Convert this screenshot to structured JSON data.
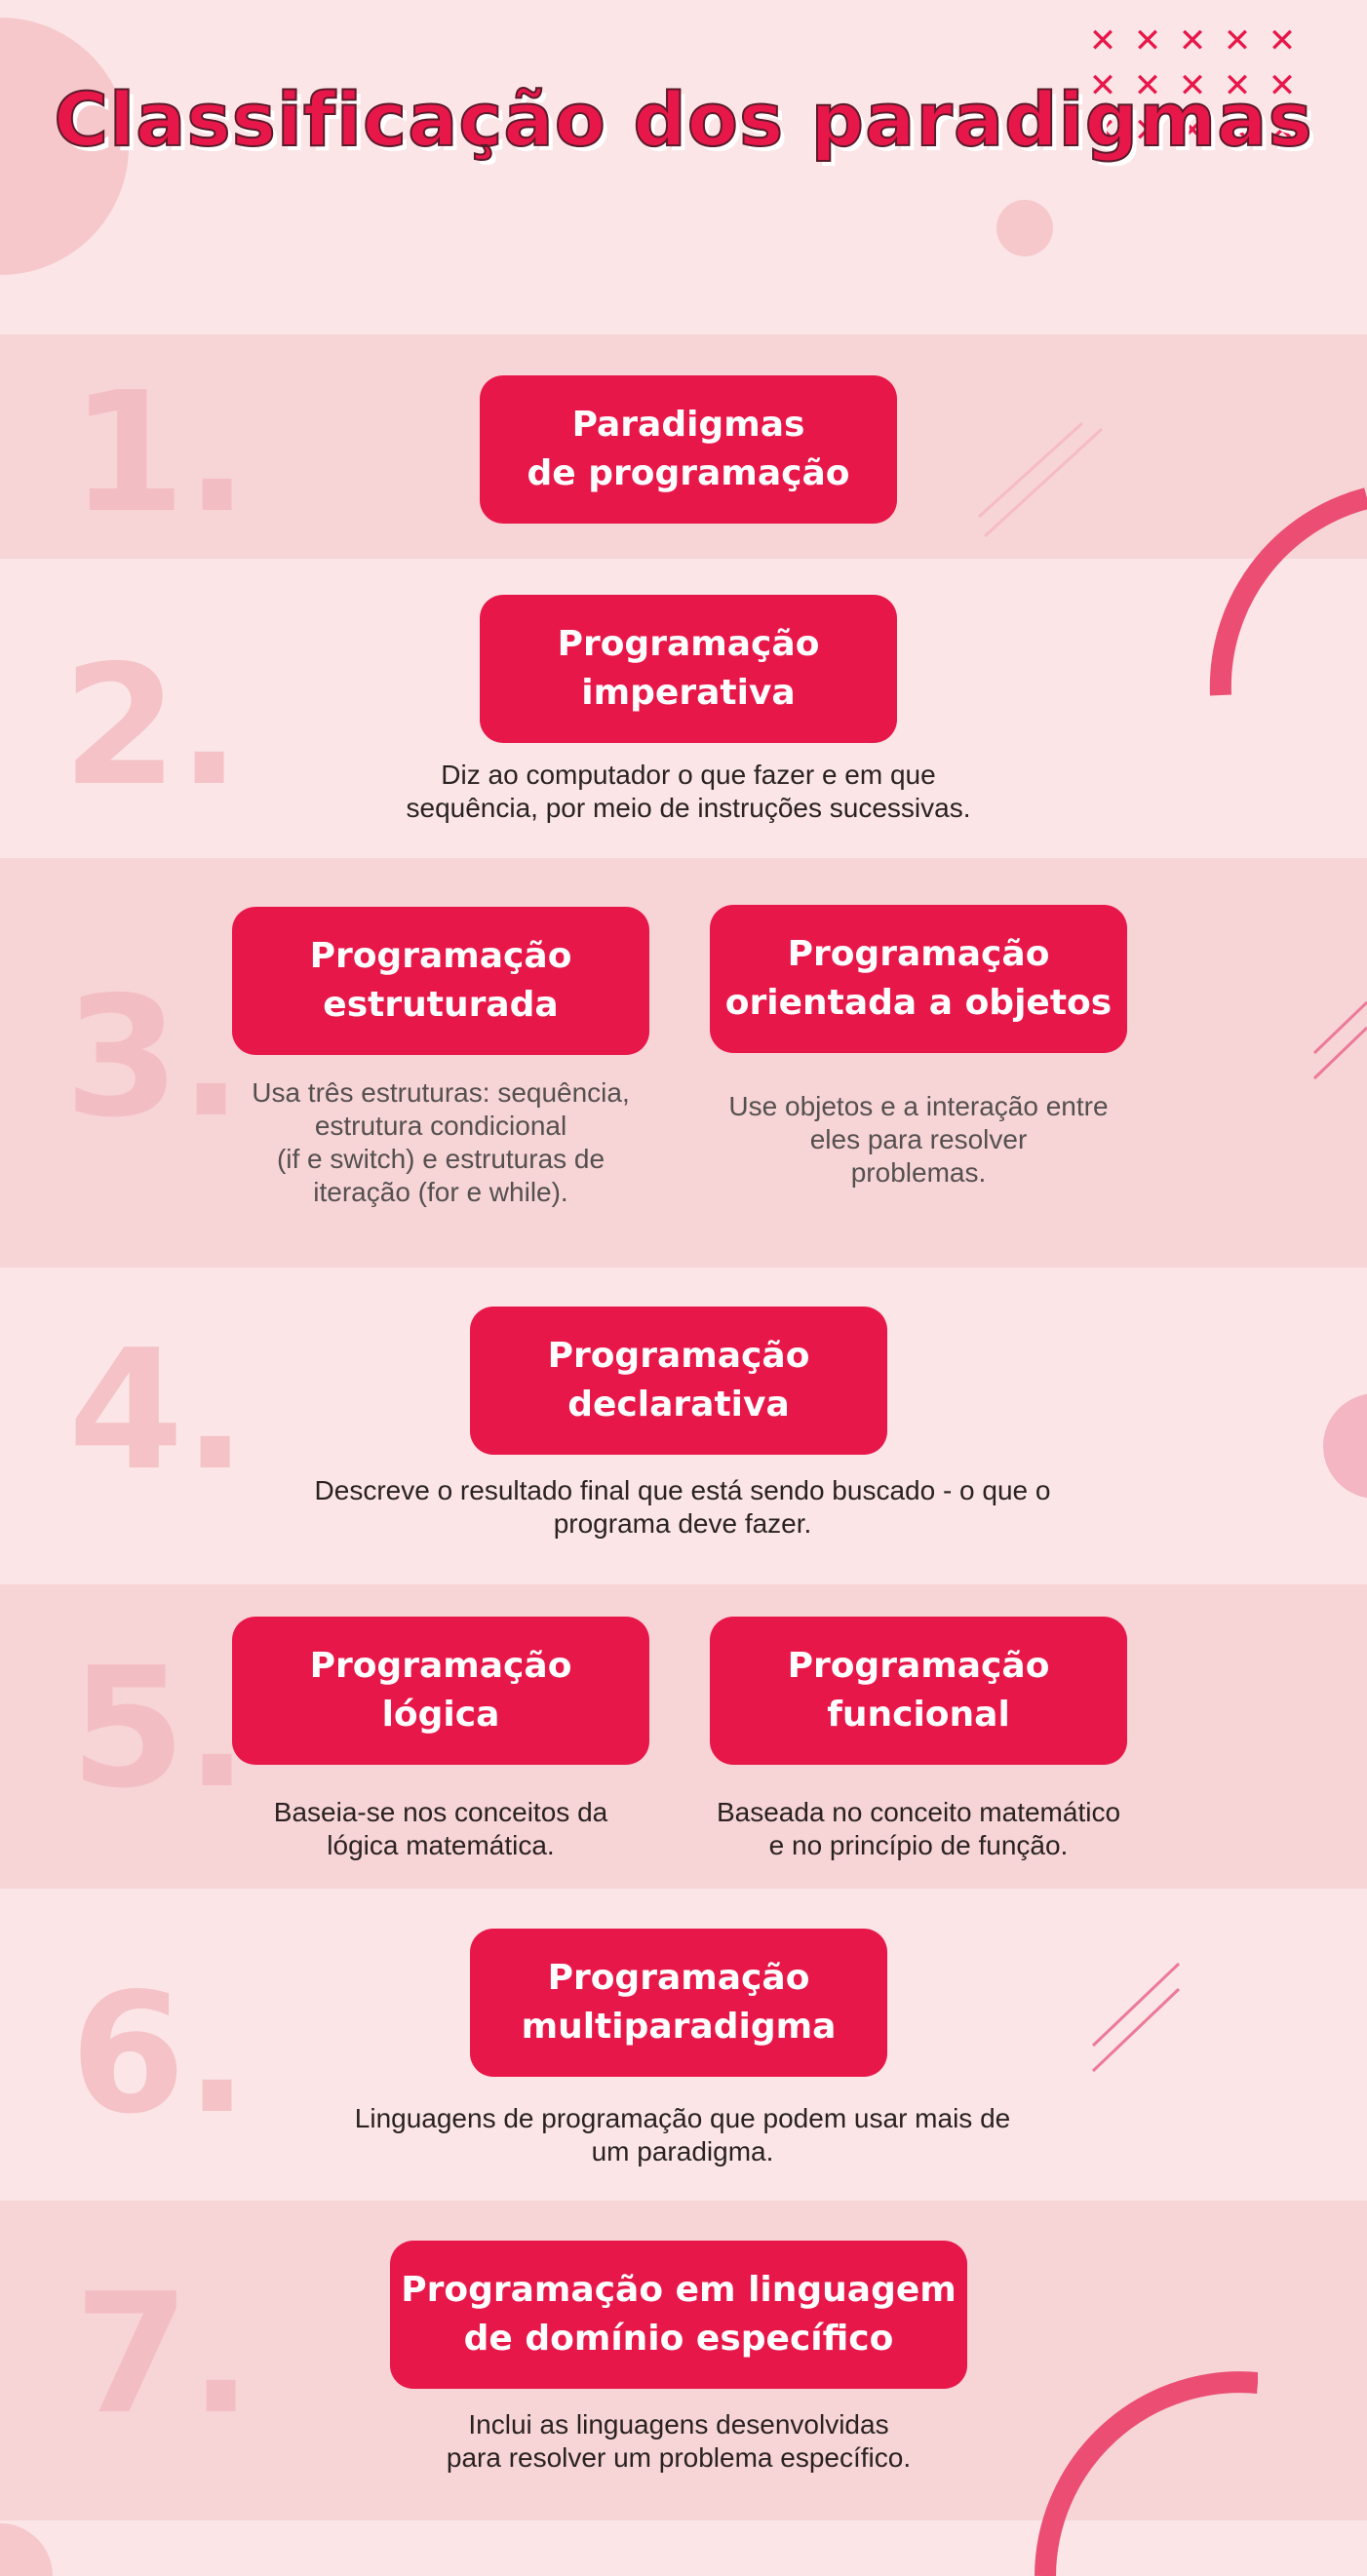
{
  "title": "Classificação dos\nparadigmas",
  "colors": {
    "accent": "#e8174a",
    "background": "#fbe5e6",
    "band": "#f7d4d6",
    "number": "#f2b7bd"
  },
  "sections": [
    {
      "number": "1.",
      "boxes": [
        {
          "label": "Paradigmas\nde programação",
          "description": ""
        }
      ]
    },
    {
      "number": "2.",
      "boxes": [
        {
          "label": "Programação\nimperativa",
          "description": "Diz ao computador o que fazer e em que\nsequência, por meio de instruções sucessivas."
        }
      ]
    },
    {
      "number": "3.",
      "boxes": [
        {
          "label": "Programação\nestruturada",
          "description": "Usa três estruturas: sequência,\nestrutura condicional\n(if e switch) e estruturas de\niteração (for e while)."
        },
        {
          "label": "Programação\norientada a objetos",
          "description": "Use objetos e a interação entre\neles para resolver\nproblemas."
        }
      ]
    },
    {
      "number": "4.",
      "boxes": [
        {
          "label": "Programação\ndeclarativa",
          "description": "Descreve o resultado final que está sendo buscado - o que o\nprograma deve fazer."
        }
      ]
    },
    {
      "number": "5.",
      "boxes": [
        {
          "label": "Programação\nlógica",
          "description": "Baseia-se nos conceitos da\nlógica matemática."
        },
        {
          "label": "Programação\nfuncional",
          "description": "Baseada no conceito matemático\ne no princípio de função."
        }
      ]
    },
    {
      "number": "6.",
      "boxes": [
        {
          "label": "Programação\nmultiparadigma",
          "description": "Linguagens de programação que podem usar mais de\num paradigma."
        }
      ]
    },
    {
      "number": "7.",
      "boxes": [
        {
          "label": "Programação em linguagem\nde domínio específico",
          "description": "Inclui as linguagens desenvolvidas\npara resolver um problema específico."
        }
      ]
    }
  ],
  "decorations": {
    "cross_symbol": "✕"
  }
}
